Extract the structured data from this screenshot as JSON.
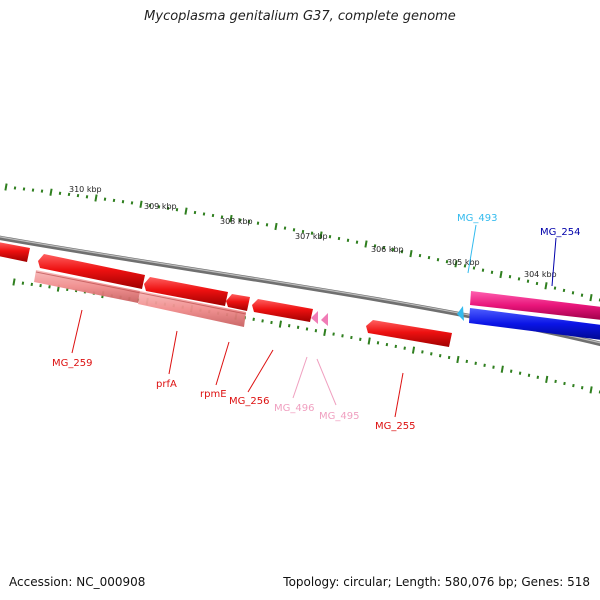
{
  "header": {
    "title": "Mycoplasma genitalium G37, complete genome"
  },
  "footer": {
    "accession": "Accession: NC_000908",
    "summary": "Topology: circular; Length: 580,076 bp; Genes: 518"
  },
  "ruler": {
    "ticks": [
      "310 kbp",
      "309 kbp",
      "308 kbp",
      "307 kbp",
      "306 kbp",
      "305 kbp",
      "304 kbp"
    ],
    "color": "#2f7f1f"
  },
  "genes": [
    {
      "name": "MG_259",
      "color": "#dd1111"
    },
    {
      "name": "prfA",
      "color": "#dd1111"
    },
    {
      "name": "rpmE",
      "color": "#dd1111"
    },
    {
      "name": "MG_256",
      "color": "#dd1111"
    },
    {
      "name": "MG_496",
      "color": "#f2a0c4"
    },
    {
      "name": "MG_495",
      "color": "#f2a0c4"
    },
    {
      "name": "MG_255",
      "color": "#dd1111"
    },
    {
      "name": "MG_493",
      "color": "#33bbee"
    },
    {
      "name": "MG_254",
      "color": "#0000aa"
    }
  ],
  "colors": {
    "backbone": "#808080",
    "feature_red": "#ee1111",
    "feature_pink": "#f28b8b",
    "feature_magenta": "#e8157a",
    "feature_blue": "#0a14e6"
  }
}
